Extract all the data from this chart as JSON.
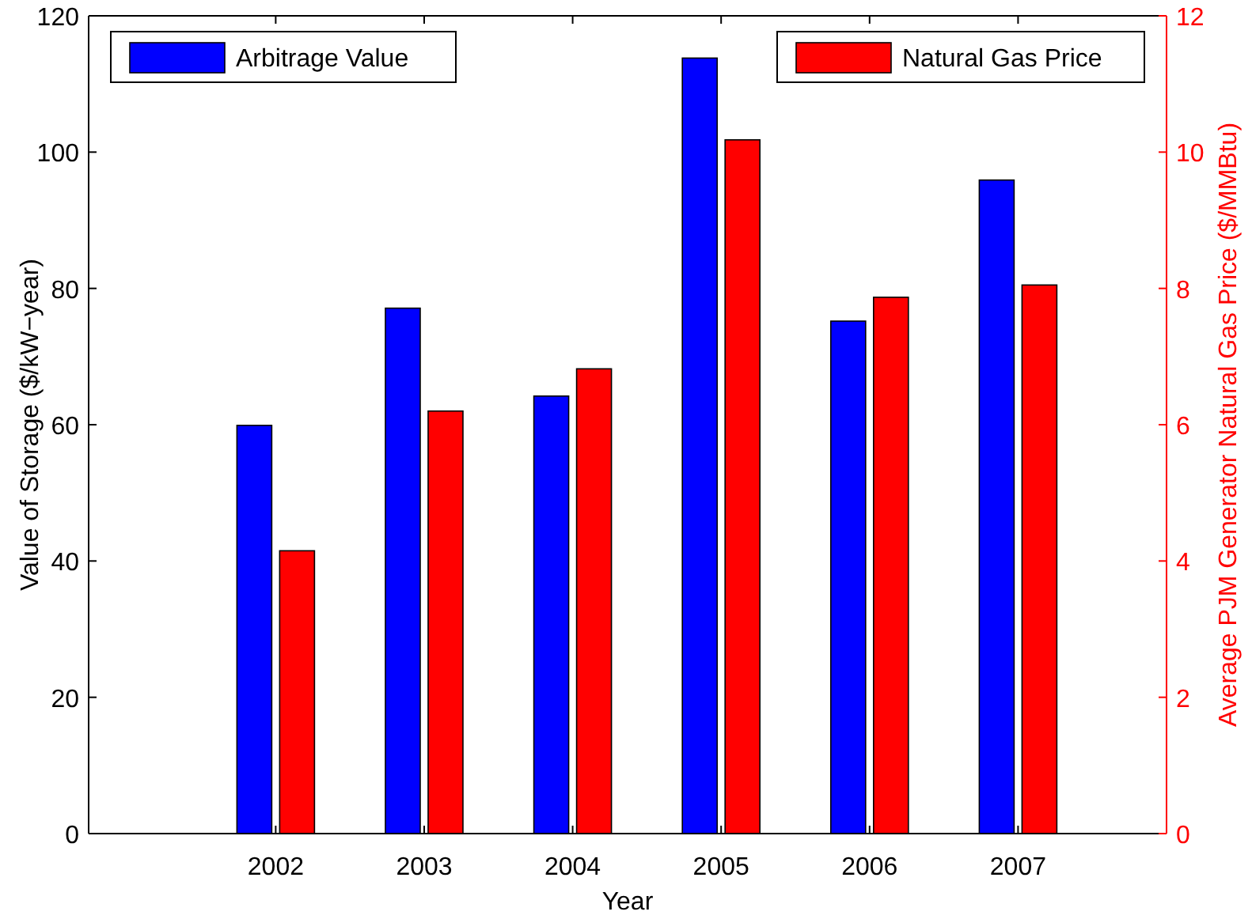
{
  "chart_data": {
    "type": "bar",
    "xlabel": "Year",
    "ylabel": "Value of Storage ($/kW−year)",
    "y2label": "Average PJM Generator Natural Gas Price ($/MMBtu)",
    "categories": [
      "2002",
      "2003",
      "2004",
      "2005",
      "2006",
      "2007"
    ],
    "series": [
      {
        "name": "Arbitrage Value",
        "color": "#0000ff",
        "values": [
          59.9,
          77.1,
          64.2,
          113.8,
          75.2,
          95.9
        ]
      },
      {
        "name": "Natural Gas Price",
        "color": "#ff0000",
        "axis": "y2",
        "values": [
          4.15,
          6.2,
          6.82,
          10.18,
          7.87,
          8.05
        ]
      }
    ],
    "ylim": [
      0,
      120
    ],
    "yticks": [
      0,
      20,
      40,
      60,
      80,
      100,
      120
    ],
    "y2lim": [
      0,
      12
    ],
    "y2ticks": [
      0,
      2,
      4,
      6,
      8,
      10,
      12
    ],
    "legend": "top",
    "grid": false
  }
}
